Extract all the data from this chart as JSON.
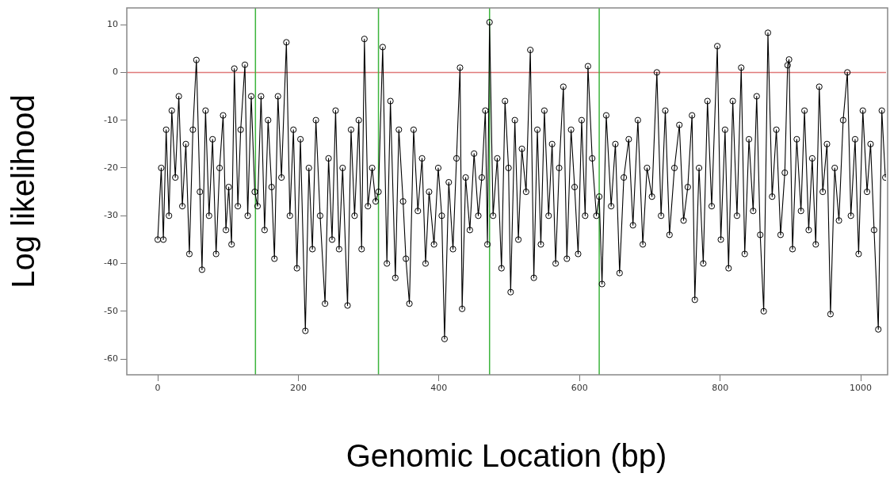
{
  "chart_data": {
    "type": "line",
    "xlabel": "Genomic Location (bp)",
    "ylabel": "Log likelihood",
    "xlim": [
      -44,
      1036
    ],
    "ylim": [
      -63.3,
      13.5
    ],
    "xticks": [
      0,
      200,
      400,
      600,
      800,
      1000
    ],
    "yticks": [
      -60,
      -50,
      -40,
      -30,
      -20,
      -10,
      0,
      10
    ],
    "marker": "circle",
    "line_style": "solid",
    "ref_lines": [
      {
        "axis": "y",
        "value": 0,
        "color": "#e07a7a"
      },
      {
        "axis": "x",
        "value": 139,
        "color": "#3cb43c"
      },
      {
        "axis": "x",
        "value": 314,
        "color": "#3cb43c"
      },
      {
        "axis": "x",
        "value": 472,
        "color": "#3cb43c"
      },
      {
        "axis": "x",
        "value": 628,
        "color": "#3cb43c"
      }
    ],
    "series": [
      {
        "color": "#000000",
        "x": [
          0,
          5,
          8,
          12,
          16,
          20,
          25,
          30,
          35,
          40,
          45,
          50,
          55,
          60,
          63,
          68,
          73,
          78,
          83,
          88,
          93,
          97,
          101,
          105,
          109,
          114,
          118,
          124,
          128,
          133,
          138,
          142,
          147,
          152,
          157,
          162,
          166,
          171,
          176,
          183,
          188,
          193,
          198,
          203,
          210,
          215,
          220,
          225,
          231,
          238,
          243,
          248,
          253,
          258,
          263,
          270,
          275,
          280,
          286,
          290,
          294,
          299,
          305,
          310,
          314,
          320,
          326,
          331,
          338,
          343,
          349,
          353,
          358,
          364,
          370,
          376,
          381,
          386,
          393,
          399,
          404,
          408,
          414,
          420,
          425,
          430,
          433,
          438,
          444,
          450,
          456,
          461,
          466,
          469,
          472,
          477,
          483,
          489,
          494,
          499,
          502,
          508,
          513,
          518,
          524,
          530,
          535,
          540,
          545,
          550,
          556,
          561,
          566,
          571,
          577,
          582,
          588,
          593,
          598,
          603,
          608,
          612,
          618,
          624,
          628,
          632,
          638,
          645,
          651,
          657,
          663,
          670,
          676,
          683,
          690,
          696,
          703,
          710,
          716,
          722,
          728,
          735,
          742,
          748,
          754,
          760,
          764,
          770,
          776,
          782,
          788,
          796,
          801,
          807,
          812,
          818,
          824,
          830,
          835,
          841,
          847,
          852,
          857,
          862,
          868,
          874,
          880,
          886,
          892,
          896,
          898,
          903,
          909,
          915,
          920,
          926,
          931,
          936,
          941,
          946,
          952,
          957,
          963,
          969,
          975,
          981,
          986,
          992,
          997,
          1003,
          1009,
          1014,
          1019,
          1025,
          1030,
          1035
        ],
        "values": [
          -35,
          -20,
          -35,
          -12,
          -30,
          -8,
          -22,
          -5,
          -28,
          -15,
          -38,
          -12,
          2.6,
          -25,
          -41.3,
          -8,
          -30,
          -14,
          -38,
          -20,
          -9,
          -33,
          -24,
          -36,
          0.8,
          -28,
          -12,
          1.6,
          -30,
          -5,
          -25,
          -28,
          -5,
          -33,
          -10,
          -24,
          -39,
          -5,
          -22,
          6.3,
          -30,
          -12,
          -41,
          -14,
          -54.1,
          -20,
          -37,
          -10,
          -30,
          -48.4,
          -18,
          -35,
          -8,
          -37,
          -20,
          -48.8,
          -12,
          -30,
          -10,
          -37,
          7,
          -28,
          -20,
          -27,
          -25,
          5.3,
          -40,
          -6,
          -43,
          -12,
          -27,
          -39,
          -48.4,
          -12,
          -29,
          -18,
          -40,
          -25,
          -36,
          -20,
          -30,
          -55.8,
          -23,
          -37,
          -18,
          1,
          -49.5,
          -22,
          -33,
          -17,
          -30,
          -22,
          -8,
          -36,
          10.5,
          -30,
          -18,
          -41,
          -6,
          -20,
          -46,
          -10,
          -35,
          -16,
          -25,
          4.7,
          -43,
          -12,
          -36,
          -8,
          -30,
          -15,
          -40,
          -20,
          -3,
          -39,
          -12,
          -24,
          -38,
          -10,
          -30,
          1.3,
          -18,
          -30,
          -26,
          -44.3,
          -9,
          -28,
          -15,
          -42,
          -22,
          -14,
          -32,
          -10,
          -36,
          -20,
          -26,
          0,
          -30,
          -8,
          -34,
          -20,
          -11,
          -31,
          -24,
          -9,
          -47.6,
          -20,
          -40,
          -6,
          -28,
          5.5,
          -35,
          -12,
          -41,
          -6,
          -30,
          1,
          -38,
          -14,
          -29,
          -5,
          -34,
          -50,
          8.3,
          -26,
          -12,
          -34,
          -21,
          1.5,
          2.7,
          -37,
          -14,
          -29,
          -8,
          -33,
          -18,
          -36,
          -3,
          -25,
          -15,
          -50.6,
          -20,
          -31,
          -10,
          0,
          -30,
          -14,
          -38,
          -8,
          -25,
          -15,
          -33,
          -53.8,
          -8,
          -22
        ]
      }
    ]
  }
}
